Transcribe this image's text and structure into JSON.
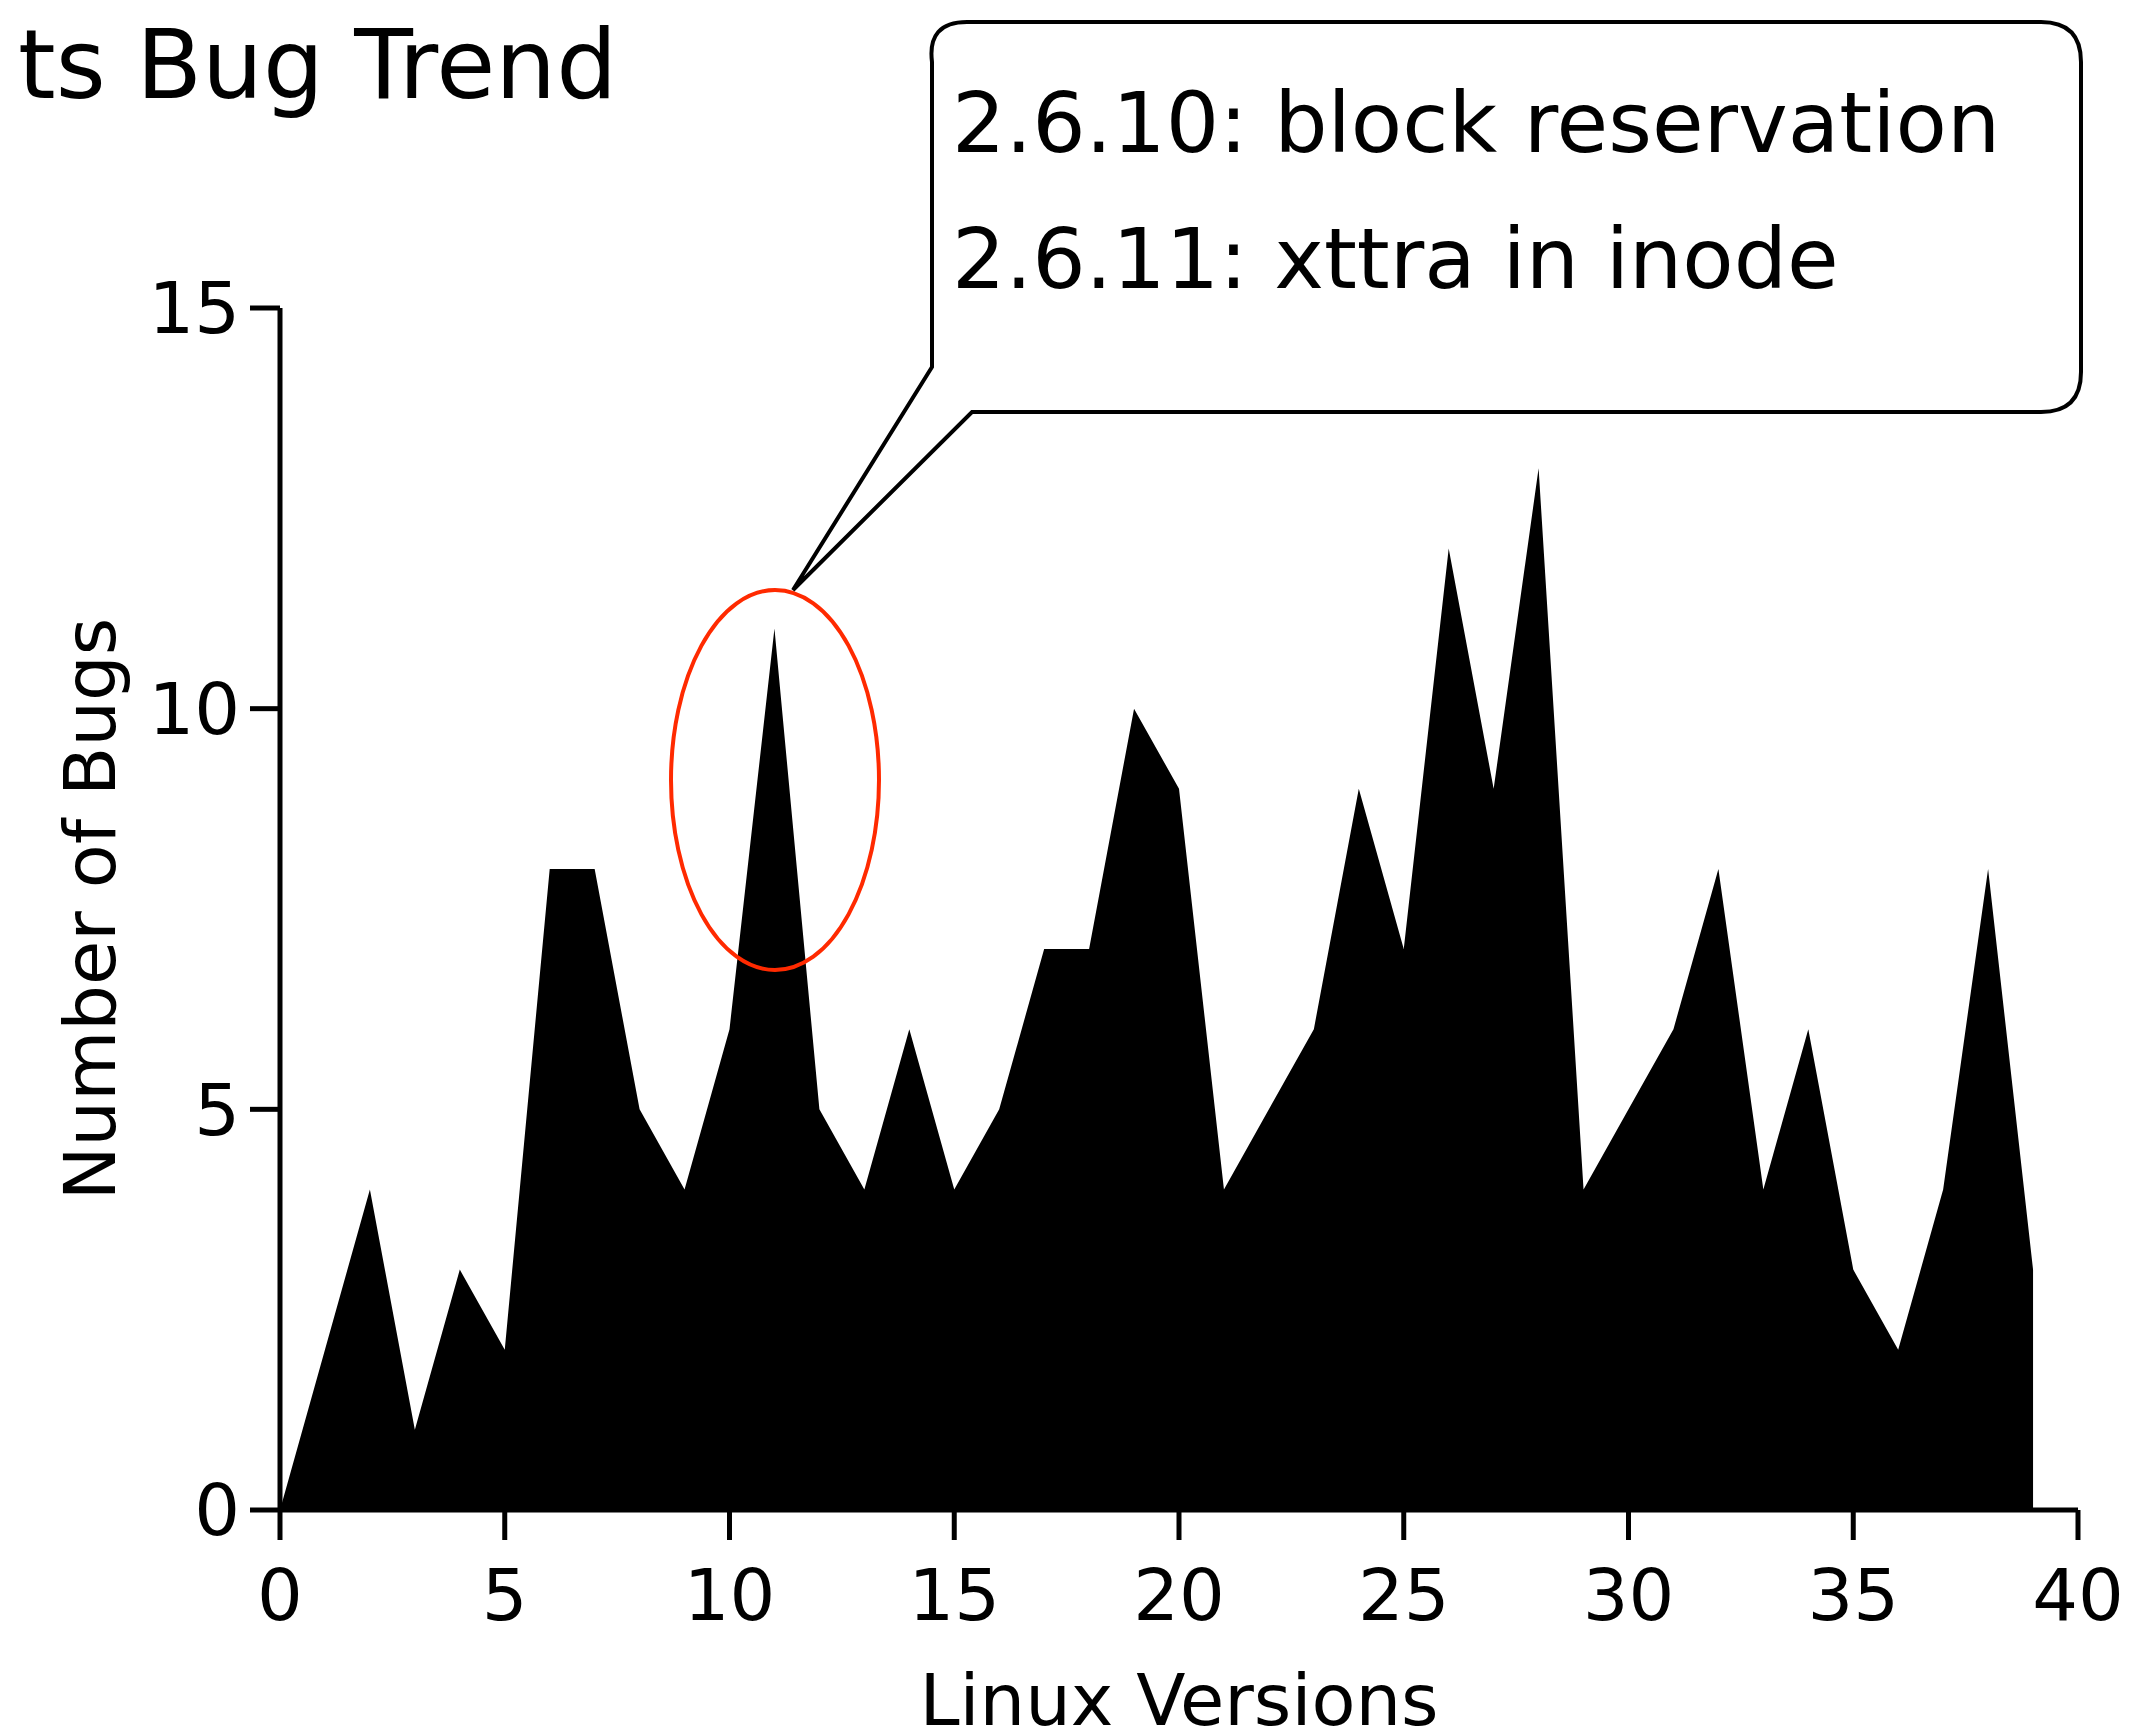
{
  "chart_data": {
    "type": "area",
    "title": "ts Bug Trend",
    "xlabel": "Linux Versions",
    "ylabel": "Number of Bugs",
    "x": [
      0,
      1,
      2,
      3,
      4,
      5,
      6,
      7,
      8,
      9,
      10,
      11,
      12,
      13,
      14,
      15,
      16,
      17,
      18,
      19,
      20,
      21,
      22,
      23,
      24,
      25,
      26,
      27,
      28,
      29,
      30,
      31,
      32,
      33,
      34,
      35,
      36,
      37,
      38,
      39
    ],
    "series": [
      {
        "color": "#000000",
        "values": [
          0,
          2,
          4,
          1,
          3,
          2,
          8,
          8,
          5,
          4,
          6,
          11,
          5,
          4,
          6,
          4,
          5,
          7,
          7,
          10,
          9,
          4,
          5,
          6,
          9,
          7,
          12,
          9,
          13,
          4,
          5,
          6,
          8,
          4,
          6,
          3,
          2,
          4,
          8,
          3
        ]
      }
    ],
    "xlim": [
      0,
      40
    ],
    "xticks": [
      0,
      5,
      10,
      15,
      20,
      25,
      30,
      35,
      40
    ],
    "ylim": [
      0,
      15
    ],
    "yticks": [
      0,
      5,
      10,
      15
    ],
    "grid": false,
    "annotations": [
      "2.6.10: block reservation\n2.6.11: xttra in inode"
    ]
  }
}
